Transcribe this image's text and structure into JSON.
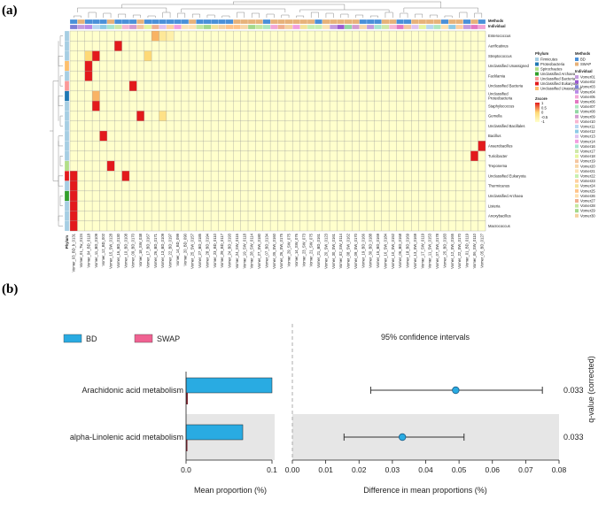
{
  "panel_a_label": "(a)",
  "panel_b_label": "(b)",
  "heatmap": {
    "top_bar_labels": [
      "Methods",
      "Individual"
    ],
    "left_bar_label": "Phylum",
    "rows": [
      "Enterococcus",
      "Aerificativus",
      "Streptococcus",
      "Unclassified Unassigned",
      "Facklamia",
      "Unclassified Bacteria",
      "Unclassified Proteobacteria",
      "Staphylococcus",
      "Gemella",
      "Unclassified Bacillales",
      "Bacillus",
      "Anaerobacillus",
      "Turicibacter",
      "Treponema",
      "Unclassified Eukaryota",
      "Thermicanus",
      "Unclassified Archaea",
      "Listeria",
      "Anoxybacillus",
      "Macrococcus"
    ],
    "columns": [
      "Vomer_03_BD_b_0131",
      "Vomer_01_Tw_0124",
      "Vomer_04_BD_0118",
      "Vomer_11_BD_0109",
      "Vomer_12_BD_002",
      "Vomer_15_SW_0128",
      "Vomer_16_BD_0130",
      "Vomer_10_BD_0108",
      "Vomer_09_BD_0170",
      "Vomer_18_SW_038",
      "Vomer_17_BD_0167",
      "Vomer_26_BD_0171",
      "Vomer_13_BD_0109",
      "Vomer_22_BD_0197",
      "Vomer_14_BD_099",
      "Vomer_20_BD_090",
      "Vomer_25_SW_0157",
      "Vomer_27_BD_0185",
      "Vomer_28_BD_0194",
      "Vomer_23_BD_0110",
      "Vomer_29_BD_0117",
      "Vomer_24_BD_0193",
      "Vomer_24_SW_0116",
      "Vomer_19_SW_0118",
      "Vomer_28_SW_0114",
      "Vomer_27_SW_0180",
      "Vomer_07_BD_0134",
      "Vomer_05_SW_0160",
      "Vomer_26_SW_0175",
      "Vomer_29_SW_075",
      "Vomer_14_SW_076",
      "Vomer_23_SW_073",
      "Vomer_21_SW_075",
      "Vomer_21_BD_0161",
      "Vomer_20_SW_0123",
      "Vomer_30_SW_0161",
      "Vomer_02_SW_0114",
      "Vomer_08_SW_0162",
      "Vomer_09_SW_0170",
      "Vomer_19_BD_0166",
      "Vomer_30_BD_0188",
      "Vomer_15_BD_0169",
      "Vomer_16_SW_0184",
      "Vomer_10_SW_0152",
      "Vomer_06_BD_0168",
      "Vomer_18_BD_0169",
      "Vomer_13_SW_0169",
      "Vomer_17_SW_0119",
      "Vomer_11_SW_0153",
      "Vomer_07_SW_0178",
      "Vomer_25_BD_0183",
      "Vomer_12_SW_0165",
      "Vomer_22_SW_0170",
      "Vomer_01_BD_0119",
      "Vomer_06_SW_0110",
      "Vomer_05_BD_0127"
    ],
    "hot_cells": [
      [
        0,
        11,
        0.6
      ],
      [
        0,
        12,
        0.3
      ],
      [
        0,
        13,
        0.2
      ],
      [
        1,
        6,
        1
      ],
      [
        2,
        2,
        0.5
      ],
      [
        2,
        3,
        1
      ],
      [
        2,
        10,
        0.5
      ],
      [
        3,
        2,
        1
      ],
      [
        4,
        2,
        1
      ],
      [
        5,
        8,
        1
      ],
      [
        6,
        3,
        0.6
      ],
      [
        7,
        3,
        1
      ],
      [
        8,
        9,
        1
      ],
      [
        8,
        12,
        0.4
      ],
      [
        10,
        4,
        1
      ],
      [
        11,
        55,
        1
      ],
      [
        12,
        54,
        1
      ],
      [
        13,
        5,
        1
      ],
      [
        14,
        7,
        1
      ],
      [
        14,
        0,
        1
      ],
      [
        15,
        0,
        1
      ],
      [
        16,
        0,
        1
      ],
      [
        17,
        0,
        1
      ],
      [
        18,
        0,
        1
      ],
      [
        19,
        0,
        1
      ]
    ],
    "legend": {
      "phylum_title": "Phylum",
      "phylum": [
        {
          "label": "Firmicutes",
          "color": "#a6cee3"
        },
        {
          "label": "Proteobacteria",
          "color": "#1f78b4"
        },
        {
          "label": "Spirochaetes",
          "color": "#b2df8a"
        },
        {
          "label": "Unclassified Archaea",
          "color": "#33a02c"
        },
        {
          "label": "Unclassified Bacteria",
          "color": "#fb9a99"
        },
        {
          "label": "Unclassified Eukaryota",
          "color": "#e31a1c"
        },
        {
          "label": "Unclassified Unassigned",
          "color": "#fdbf6f"
        }
      ],
      "zscore_title": "Zscore",
      "zscore_ticks": [
        "1",
        "0.5",
        "0",
        "-0.5",
        "-1"
      ],
      "methods_title": "Methods",
      "methods": [
        {
          "label": "BD",
          "color": "#4a90d9"
        },
        {
          "label": "SWAP",
          "color": "#e7b27a"
        }
      ],
      "individual_title": "Individual",
      "individuals": [
        "Vomer01",
        "Vomer02",
        "Vomer03",
        "Vomer04",
        "Vomer05",
        "Vomer06",
        "Vomer07",
        "Vomer08",
        "Vomer09",
        "Vomer10",
        "Vomer11",
        "Vomer12",
        "Vomer13",
        "Vomer14",
        "Vomer16",
        "Vomer17",
        "Vomer18",
        "Vomer19",
        "Vomer20",
        "Vomer21",
        "Vomer22",
        "Vomer23",
        "Vomer24",
        "Vomer25",
        "Vomer26",
        "Vomer27",
        "Vomer28",
        "Vomer29",
        "Vomer30"
      ],
      "individual_colors": [
        "#c49cde",
        "#9b59d0",
        "#7f7fd6",
        "#b88ae6",
        "#f3a6d6",
        "#e377c2",
        "#aee8c0",
        "#92d8a4",
        "#d39bd0",
        "#f7b6d2",
        "#b7d7f2",
        "#8ecae6",
        "#e0c2f0",
        "#f29ee0",
        "#a8e6cf",
        "#cfe8a8",
        "#e6f5a0",
        "#f5c6a0",
        "#f8d7a8",
        "#fbe3b5",
        "#c8f0b0",
        "#ffd0a0",
        "#f4e39a",
        "#ffc48a",
        "#ffe1b0",
        "#f0b090",
        "#c6e8a0",
        "#a4d88c",
        "#f5d2a0"
      ]
    },
    "color_scale": {
      "low": "#ffffcc",
      "mid": "#fed976",
      "high": "#e31a1c"
    }
  },
  "chart_data": {
    "type": "bar",
    "legend": [
      {
        "label": "BD",
        "color": "#29abe2"
      },
      {
        "label": "SWAP",
        "color": "#f06292"
      }
    ],
    "ci_title": "95% confidence intervals",
    "categories": [
      "Arachidonic acid metabolism",
      "alpha-Linolenic acid metabolism"
    ],
    "series": [
      {
        "name": "BD",
        "values": [
          0.1,
          0.066
        ]
      },
      {
        "name": "SWAP",
        "values": [
          0.002,
          0.0015
        ]
      }
    ],
    "diff": [
      {
        "mean": 0.049,
        "low": 0.0235,
        "high": 0.075
      },
      {
        "mean": 0.033,
        "low": 0.0155,
        "high": 0.0515
      }
    ],
    "q_values": [
      "0.033",
      "0.033"
    ],
    "q_axis_label": "q-value (corrected)",
    "left_xlabel": "Mean proportion (%)",
    "left_xticks": [
      "0.0",
      "0.1"
    ],
    "left_xlim": [
      0,
      0.1
    ],
    "right_xlabel": "Difference in mean proportions (%)",
    "right_xticks": [
      "0.00",
      "0.01",
      "0.02",
      "0.03",
      "0.04",
      "0.05",
      "0.06",
      "0.07",
      "0.08"
    ],
    "right_xlim": [
      0,
      0.08
    ]
  }
}
